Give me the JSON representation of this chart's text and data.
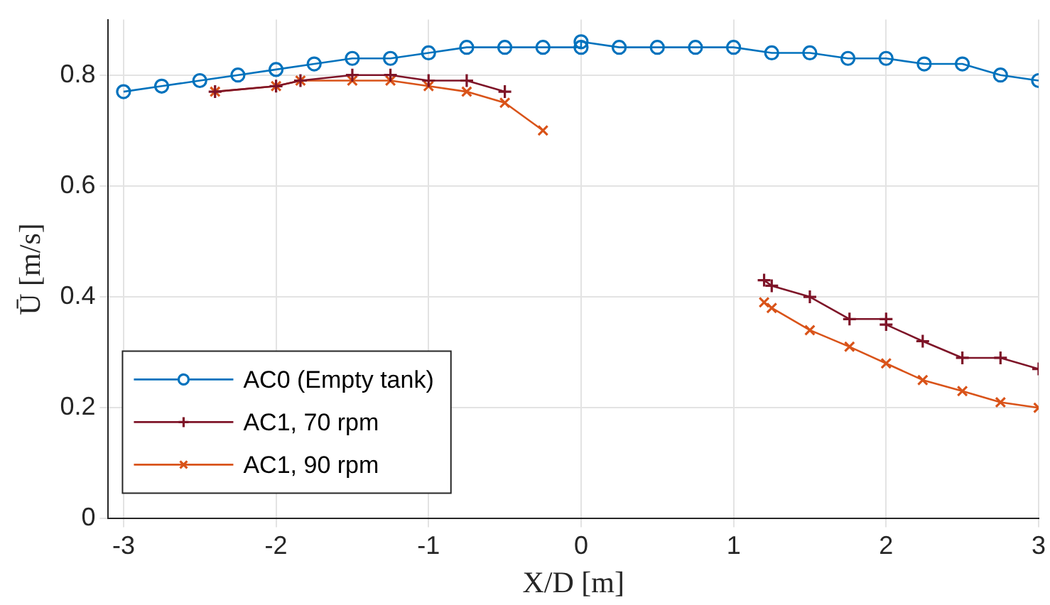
{
  "chart_data": {
    "type": "line",
    "xlabel": "X/D [m]",
    "ylabel": "Ū [m/s]",
    "xlim": [
      -3.1,
      3
    ],
    "xticks": [
      -3,
      -2,
      -1,
      0,
      1,
      2,
      3
    ],
    "ylim": [
      0,
      0.9
    ],
    "yticks": [
      0,
      0.2,
      0.4,
      0.6,
      0.8
    ],
    "grid": true,
    "legend": "bottom left",
    "line_style": "solid",
    "series": [
      {
        "name": "AC0 (Empty tank)",
        "color": "#0072bd",
        "marker": "circle",
        "x": [
          -3,
          -2.75,
          -2.5,
          -2.25,
          -2,
          -1.75,
          -1.5,
          -1.25,
          -1,
          -0.75,
          -0.5,
          -0.25,
          0,
          0,
          0.25,
          0.5,
          0.75,
          1,
          1.25,
          1.5,
          1.75,
          2,
          2.25,
          2.5,
          2.75,
          3
        ],
        "values": [
          0.77,
          0.78,
          0.79,
          0.8,
          0.81,
          0.82,
          0.83,
          0.83,
          0.84,
          0.85,
          0.85,
          0.85,
          0.85,
          0.86,
          0.85,
          0.85,
          0.85,
          0.85,
          0.84,
          0.84,
          0.83,
          0.83,
          0.82,
          0.82,
          0.8,
          0.79
        ]
      },
      {
        "name": "AC1, 70 rpm",
        "color": "#7e1428",
        "marker": "cross",
        "x": [
          -2.4,
          -2,
          -1.84,
          -1.5,
          -1.25,
          -1,
          -0.75,
          -0.5,
          0.4,
          1.2,
          1.25,
          1.5,
          1.76,
          2,
          2,
          2.24,
          2.5,
          2.75,
          3
        ],
        "values": [
          0.77,
          0.78,
          0.79,
          0.8,
          0.8,
          0.79,
          0.79,
          0.77,
          null,
          0.43,
          0.42,
          0.4,
          0.36,
          0.36,
          0.35,
          0.32,
          0.29,
          0.29,
          0.27
        ]
      },
      {
        "name": "AC1, 90 rpm",
        "color": "#d95319",
        "marker": "x",
        "x": [
          -2.4,
          -2,
          -1.84,
          -1.5,
          -1.25,
          -1,
          -0.75,
          -0.5,
          -0.25,
          0.4,
          1.2,
          1.25,
          1.5,
          1.76,
          2,
          2.24,
          2.5,
          2.75,
          3
        ],
        "values": [
          0.77,
          0.78,
          0.79,
          0.79,
          0.79,
          0.78,
          0.77,
          0.75,
          0.7,
          null,
          0.39,
          0.38,
          0.34,
          0.31,
          0.28,
          0.25,
          0.23,
          0.21,
          0.2
        ]
      }
    ]
  }
}
